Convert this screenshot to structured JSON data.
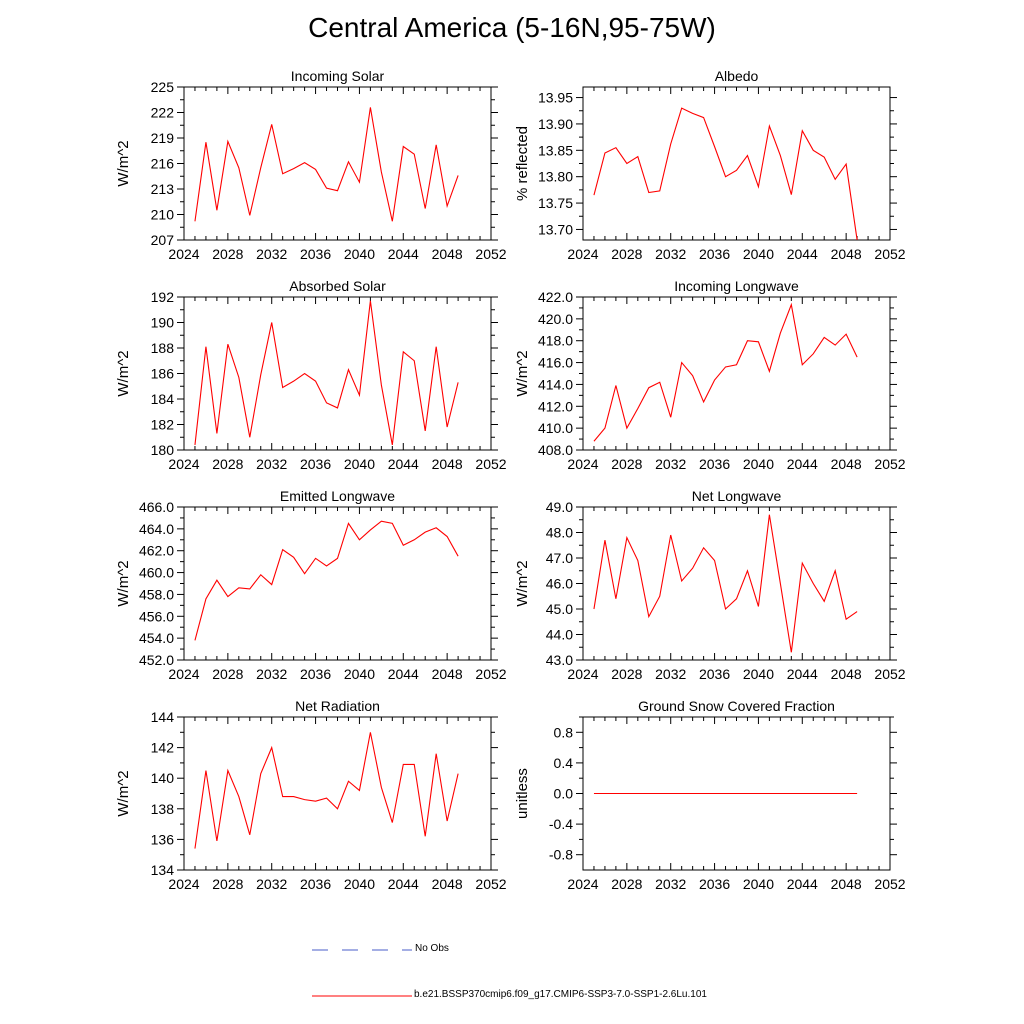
{
  "title": "Central America (5-16N,95-75W)",
  "series_color": "#ff0000",
  "obs_color": "#4a5cc8",
  "legend": {
    "obs_label": "No Obs",
    "model_label": "b.e21.BSSP370cmip6.f09_g17.CMIP6-SSP3-7.0-SSP1-2.6Lu.101"
  },
  "chart_data": [
    {
      "type": "line",
      "title": "Incoming Solar",
      "ylabel": "W/m^2",
      "xlim": [
        2024,
        2052
      ],
      "ylim": [
        207,
        225
      ],
      "xticks": [
        2024,
        2028,
        2032,
        2036,
        2040,
        2044,
        2048,
        2052
      ],
      "yticks": [
        207,
        210,
        213,
        216,
        219,
        222,
        225
      ],
      "ytick_labels": [
        "207",
        "210",
        "213",
        "216",
        "219",
        "222",
        "225"
      ],
      "x": [
        2025,
        2026,
        2027,
        2028,
        2029,
        2030,
        2031,
        2032,
        2033,
        2034,
        2035,
        2036,
        2037,
        2038,
        2039,
        2040,
        2041,
        2042,
        2043,
        2044,
        2045,
        2046,
        2047,
        2048,
        2049
      ],
      "y": [
        209.2,
        218.5,
        210.5,
        218.6,
        215.5,
        209.9,
        215.5,
        220.6,
        214.8,
        215.4,
        216.1,
        215.3,
        213.1,
        212.8,
        216.2,
        213.8,
        222.6,
        215.0,
        209.2,
        218.0,
        217.1,
        210.7,
        218.2,
        211.0,
        214.6
      ]
    },
    {
      "type": "line",
      "title": "Albedo",
      "ylabel": "% reflected",
      "xlim": [
        2024,
        2052
      ],
      "ylim": [
        13.68,
        13.97
      ],
      "xticks": [
        2024,
        2028,
        2032,
        2036,
        2040,
        2044,
        2048,
        2052
      ],
      "yticks": [
        13.7,
        13.75,
        13.8,
        13.85,
        13.9,
        13.95
      ],
      "ytick_labels": [
        "13.70",
        "13.75",
        "13.80",
        "13.85",
        "13.90",
        "13.95"
      ],
      "x": [
        2025,
        2026,
        2027,
        2028,
        2029,
        2030,
        2031,
        2032,
        2033,
        2034,
        2035,
        2036,
        2037,
        2038,
        2039,
        2040,
        2041,
        2042,
        2043,
        2044,
        2045,
        2046,
        2047,
        2048,
        2049
      ],
      "y": [
        13.765,
        13.845,
        13.855,
        13.825,
        13.838,
        13.77,
        13.773,
        13.862,
        13.93,
        13.92,
        13.912,
        13.857,
        13.8,
        13.812,
        13.84,
        13.781,
        13.896,
        13.84,
        13.766,
        13.887,
        13.85,
        13.837,
        13.795,
        13.824,
        13.68
      ]
    },
    {
      "type": "line",
      "title": "Absorbed Solar",
      "ylabel": "W/m^2",
      "xlim": [
        2024,
        2052
      ],
      "ylim": [
        180,
        192
      ],
      "xticks": [
        2024,
        2028,
        2032,
        2036,
        2040,
        2044,
        2048,
        2052
      ],
      "yticks": [
        180,
        182,
        184,
        186,
        188,
        190,
        192
      ],
      "ytick_labels": [
        "180",
        "182",
        "184",
        "186",
        "188",
        "190",
        "192"
      ],
      "x": [
        2025,
        2026,
        2027,
        2028,
        2029,
        2030,
        2031,
        2032,
        2033,
        2034,
        2035,
        2036,
        2037,
        2038,
        2039,
        2040,
        2041,
        2042,
        2043,
        2044,
        2045,
        2046,
        2047,
        2048,
        2049
      ],
      "y": [
        180.4,
        188.1,
        181.3,
        188.3,
        185.7,
        181.0,
        185.9,
        190.0,
        184.9,
        185.4,
        186.0,
        185.4,
        183.7,
        183.3,
        186.3,
        184.3,
        191.7,
        185.1,
        180.4,
        187.7,
        187.0,
        181.5,
        188.1,
        181.8,
        185.3
      ]
    },
    {
      "type": "line",
      "title": "Incoming Longwave",
      "ylabel": "W/m^2",
      "xlim": [
        2024,
        2052
      ],
      "ylim": [
        408,
        422
      ],
      "xticks": [
        2024,
        2028,
        2032,
        2036,
        2040,
        2044,
        2048,
        2052
      ],
      "yticks": [
        408,
        410,
        412,
        414,
        416,
        418,
        420,
        422
      ],
      "ytick_labels": [
        "408.0",
        "410.0",
        "412.0",
        "414.0",
        "416.0",
        "418.0",
        "420.0",
        "422.0"
      ],
      "x": [
        2025,
        2026,
        2027,
        2028,
        2029,
        2030,
        2031,
        2032,
        2033,
        2034,
        2035,
        2036,
        2037,
        2038,
        2039,
        2040,
        2041,
        2042,
        2043,
        2044,
        2045,
        2046,
        2047,
        2048,
        2049
      ],
      "y": [
        408.8,
        410.0,
        413.9,
        410.0,
        411.8,
        413.7,
        414.2,
        411.0,
        416.0,
        414.8,
        412.4,
        414.4,
        415.6,
        415.8,
        418.0,
        417.9,
        415.2,
        418.7,
        421.3,
        415.8,
        416.8,
        418.3,
        417.6,
        418.6,
        416.5
      ]
    },
    {
      "type": "line",
      "title": "Emitted Longwave",
      "ylabel": "W/m^2",
      "xlim": [
        2024,
        2052
      ],
      "ylim": [
        452,
        466
      ],
      "xticks": [
        2024,
        2028,
        2032,
        2036,
        2040,
        2044,
        2048,
        2052
      ],
      "yticks": [
        452,
        454,
        456,
        458,
        460,
        462,
        464,
        466
      ],
      "ytick_labels": [
        "452.0",
        "454.0",
        "456.0",
        "458.0",
        "460.0",
        "462.0",
        "464.0",
        "466.0"
      ],
      "x": [
        2025,
        2026,
        2027,
        2028,
        2029,
        2030,
        2031,
        2032,
        2033,
        2034,
        2035,
        2036,
        2037,
        2038,
        2039,
        2040,
        2041,
        2042,
        2043,
        2044,
        2045,
        2046,
        2047,
        2048,
        2049
      ],
      "y": [
        453.8,
        457.6,
        459.3,
        457.8,
        458.6,
        458.5,
        459.8,
        458.9,
        462.1,
        461.4,
        459.9,
        461.3,
        460.6,
        461.3,
        464.5,
        463.0,
        463.9,
        464.7,
        464.5,
        462.5,
        463.0,
        463.7,
        464.1,
        463.3,
        461.5
      ]
    },
    {
      "type": "line",
      "title": "Net Longwave",
      "ylabel": "W/m^2",
      "xlim": [
        2024,
        2052
      ],
      "ylim": [
        43,
        49
      ],
      "xticks": [
        2024,
        2028,
        2032,
        2036,
        2040,
        2044,
        2048,
        2052
      ],
      "yticks": [
        43,
        44,
        45,
        46,
        47,
        48,
        49
      ],
      "ytick_labels": [
        "43.0",
        "44.0",
        "45.0",
        "46.0",
        "47.0",
        "48.0",
        "49.0"
      ],
      "x": [
        2025,
        2026,
        2027,
        2028,
        2029,
        2030,
        2031,
        2032,
        2033,
        2034,
        2035,
        2036,
        2037,
        2038,
        2039,
        2040,
        2041,
        2042,
        2043,
        2044,
        2045,
        2046,
        2047,
        2048,
        2049
      ],
      "y": [
        45.0,
        47.7,
        45.4,
        47.8,
        46.9,
        44.7,
        45.5,
        47.9,
        46.1,
        46.6,
        47.4,
        46.9,
        45.0,
        45.4,
        46.5,
        45.1,
        48.7,
        46.0,
        43.3,
        46.8,
        46.0,
        45.3,
        46.5,
        44.6,
        44.9
      ]
    },
    {
      "type": "line",
      "title": "Net Radiation",
      "ylabel": "W/m^2",
      "xlim": [
        2024,
        2052
      ],
      "ylim": [
        134,
        144
      ],
      "xticks": [
        2024,
        2028,
        2032,
        2036,
        2040,
        2044,
        2048,
        2052
      ],
      "yticks": [
        134,
        136,
        138,
        140,
        142,
        144
      ],
      "ytick_labels": [
        "134",
        "136",
        "138",
        "140",
        "142",
        "144"
      ],
      "x": [
        2025,
        2026,
        2027,
        2028,
        2029,
        2030,
        2031,
        2032,
        2033,
        2034,
        2035,
        2036,
        2037,
        2038,
        2039,
        2040,
        2041,
        2042,
        2043,
        2044,
        2045,
        2046,
        2047,
        2048,
        2049
      ],
      "y": [
        135.4,
        140.5,
        135.9,
        140.5,
        138.8,
        136.3,
        140.3,
        142.0,
        138.8,
        138.8,
        138.6,
        138.5,
        138.7,
        138.0,
        139.8,
        139.2,
        143.0,
        139.4,
        137.1,
        140.9,
        140.9,
        136.2,
        141.6,
        137.2,
        140.3
      ]
    },
    {
      "type": "line",
      "title": "Ground Snow Covered Fraction",
      "ylabel": "unitless",
      "xlim": [
        2024,
        2052
      ],
      "ylim": [
        -1.0,
        1.0
      ],
      "xticks": [
        2024,
        2028,
        2032,
        2036,
        2040,
        2044,
        2048,
        2052
      ],
      "yticks": [
        -0.8,
        -0.4,
        0.0,
        0.4,
        0.8
      ],
      "ytick_labels": [
        "-0.8",
        "-0.4",
        "0.0",
        "0.4",
        "0.8"
      ],
      "x": [
        2025,
        2026,
        2027,
        2028,
        2029,
        2030,
        2031,
        2032,
        2033,
        2034,
        2035,
        2036,
        2037,
        2038,
        2039,
        2040,
        2041,
        2042,
        2043,
        2044,
        2045,
        2046,
        2047,
        2048,
        2049
      ],
      "y": [
        0,
        0,
        0,
        0,
        0,
        0,
        0,
        0,
        0,
        0,
        0,
        0,
        0,
        0,
        0,
        0,
        0,
        0,
        0,
        0,
        0,
        0,
        0,
        0,
        0
      ]
    }
  ]
}
